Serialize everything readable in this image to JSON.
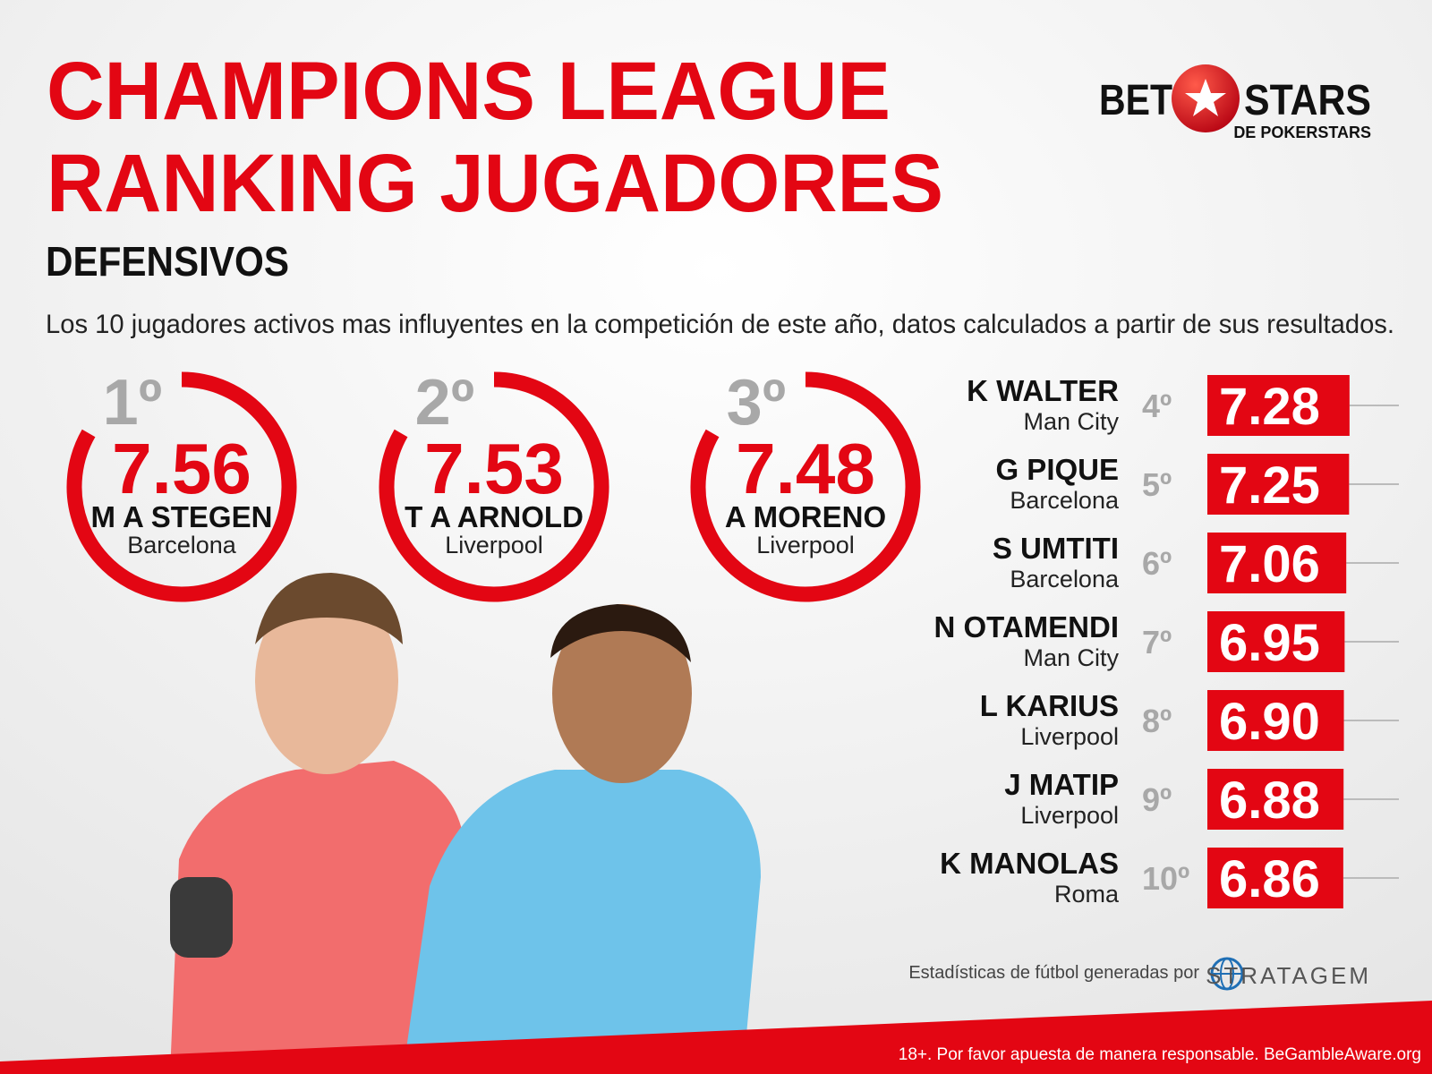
{
  "header": {
    "title_lines": [
      "CHAMPIONS LEAGUE",
      "RANKING JUGADORES"
    ],
    "subtitle": "DEFENSIVOS",
    "description": "Los 10 jugadores activos mas influyentes en la competición de este año, datos calculados a partir de sus resultados."
  },
  "logo": {
    "left": "BET",
    "right": "STARS",
    "tagline": "DE POKERSTARS"
  },
  "podium": [
    {
      "rank": "1º",
      "score": 7.56,
      "name": "M A STEGEN",
      "team": "Barcelona"
    },
    {
      "rank": "2º",
      "score": 7.53,
      "name": "T A ARNOLD",
      "team": "Liverpool"
    },
    {
      "rank": "3º",
      "score": 7.48,
      "name": "A MORENO",
      "team": "Liverpool"
    }
  ],
  "ranking": [
    {
      "rank": "4º",
      "name": "K WALTER",
      "team": "Man City",
      "score": 7.28
    },
    {
      "rank": "5º",
      "name": "G PIQUE",
      "team": "Barcelona",
      "score": 7.25
    },
    {
      "rank": "6º",
      "name": "S UMTITI",
      "team": "Barcelona",
      "score": 7.06
    },
    {
      "rank": "7º",
      "name": "N OTAMENDI",
      "team": "Man City",
      "score": 6.95
    },
    {
      "rank": "8º",
      "name": "L KARIUS",
      "team": "Liverpool",
      "score": 6.9,
      "score_label": "6.90"
    },
    {
      "rank": "9º",
      "name": "J MATIP",
      "team": "Liverpool",
      "score": 6.88
    },
    {
      "rank": "10º",
      "name": "K MANOLAS",
      "team": "Roma",
      "score": 6.86
    }
  ],
  "footer": {
    "credit": "Estadísticas de fútbol generadas por",
    "provider": "STRATAGEM",
    "disclaimer": "18+. Por favor apuesta de manera responsable. BeGambleAware.org"
  }
}
